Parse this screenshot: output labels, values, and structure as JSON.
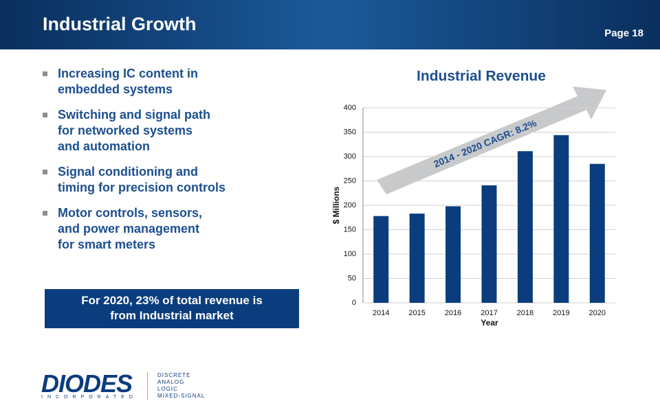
{
  "header": {
    "title": "Industrial Growth",
    "page": "Page 18"
  },
  "bullets": [
    {
      "lines": [
        "Increasing IC content in",
        "embedded systems"
      ]
    },
    {
      "lines": [
        "Switching and signal path",
        "for networked systems",
        "and automation"
      ]
    },
    {
      "lines": [
        "Signal conditioning and",
        "timing for precision controls"
      ]
    },
    {
      "lines": [
        "Motor controls, sensors,",
        "and power management",
        "for smart meters"
      ]
    }
  ],
  "callout": {
    "lines": [
      "For 2020, 23% of total revenue is",
      "from Industrial market"
    ]
  },
  "logo": {
    "name": "DIODES",
    "sub": "INCORPORATED",
    "tags": [
      "DISCRETE",
      "ANALOG",
      "LOGIC",
      "MIXED-SIGNAL"
    ]
  },
  "chart_data": {
    "type": "bar",
    "title": "Industrial Revenue",
    "x_label": "Year",
    "y_label": "$ Millions",
    "annotation": "2014 - 2020 CAGR: 8.2%",
    "categories": [
      "2014",
      "2015",
      "2016",
      "2017",
      "2018",
      "2019",
      "2020"
    ],
    "values": [
      178,
      183,
      198,
      241,
      311,
      344,
      285
    ],
    "color": "#0b3d7e",
    "ylim": [
      0,
      400
    ],
    "yticks": [
      0,
      50,
      100,
      150,
      200,
      250,
      300,
      350,
      400
    ],
    "grid": true
  }
}
